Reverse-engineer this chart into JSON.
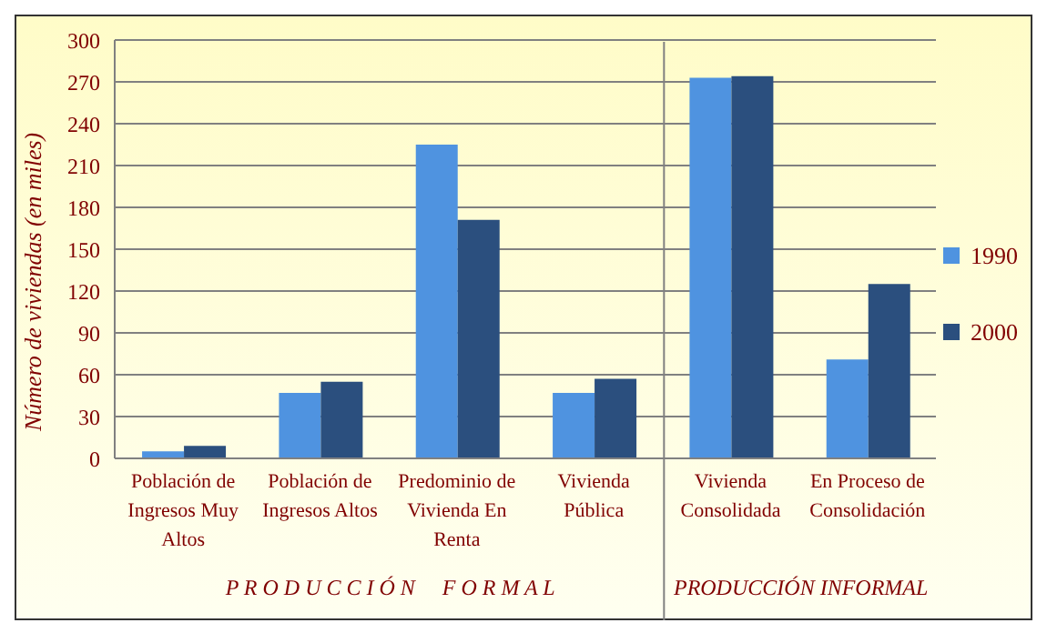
{
  "chart_data": {
    "type": "bar",
    "ylabel": "Número de viviendas (en miles)",
    "categories": [
      "Población de Ingresos Muy Altos",
      "Población de Ingresos Altos",
      "Predominio de Vivienda En Renta",
      "Vivienda Pública",
      "Vivienda Consolidada",
      "En Proceso de Consolidación"
    ],
    "series": [
      {
        "name": "1990",
        "color": "#4f93e0",
        "values": [
          5,
          47,
          225,
          47,
          273,
          71
        ]
      },
      {
        "name": "2000",
        "color": "#2b4f7e",
        "values": [
          9,
          55,
          171,
          57,
          274,
          125
        ]
      }
    ],
    "ylim": [
      0,
      300
    ],
    "yticks": [
      0,
      30,
      60,
      90,
      120,
      150,
      180,
      210,
      240,
      270,
      300
    ],
    "grid": "y",
    "legend": "right",
    "annotations": [
      "P R O D U C C I Ó N     F O R M A L",
      "PRODUCCIÓN INFORMAL"
    ]
  }
}
